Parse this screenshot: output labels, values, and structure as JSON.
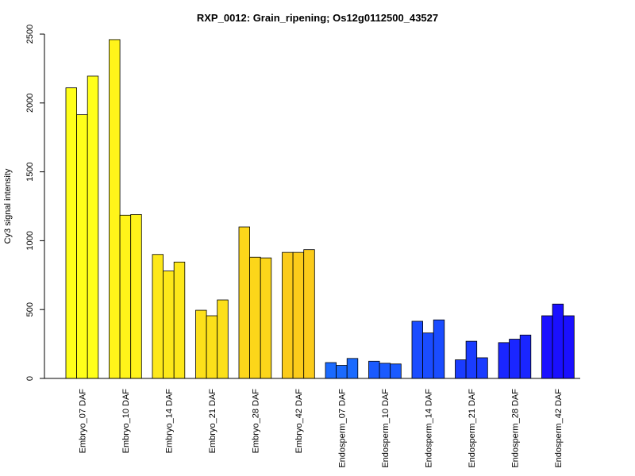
{
  "chart_data": {
    "type": "bar",
    "title": "RXP_0012: Grain_ripening; Os12g0112500_43527",
    "xlabel": "",
    "ylabel": "Cy3 signal intensity",
    "ylim": [
      0,
      2500
    ],
    "yticks": [
      "0",
      "500",
      "1000",
      "1500",
      "2000",
      "2500"
    ],
    "grid": false,
    "legend": "none",
    "groups": [
      {
        "label": "Embryo_07 DAF",
        "color": "#FFFF1A",
        "values": [
          2110,
          1915,
          2195
        ]
      },
      {
        "label": "Embryo_10 DAF",
        "color": "#FFF41A",
        "values": [
          2460,
          1185,
          1190
        ]
      },
      {
        "label": "Embryo_14 DAF",
        "color": "#FDE81A",
        "values": [
          900,
          780,
          845
        ]
      },
      {
        "label": "Embryo_21 DAF",
        "color": "#FCE01A",
        "values": [
          495,
          455,
          570
        ]
      },
      {
        "label": "Embryo_28 DAF",
        "color": "#FCD61A",
        "values": [
          1100,
          880,
          875
        ]
      },
      {
        "label": "Embryo_42 DAF",
        "color": "#FBCB1A",
        "values": [
          915,
          915,
          935
        ]
      },
      {
        "label": "Endosperm_07 DAF",
        "color": "#1A6AFF",
        "values": [
          115,
          95,
          145
        ]
      },
      {
        "label": "Endosperm_10 DAF",
        "color": "#1A5AFF",
        "values": [
          125,
          110,
          105
        ]
      },
      {
        "label": "Endosperm_14 DAF",
        "color": "#1A4CFF",
        "values": [
          415,
          330,
          425
        ]
      },
      {
        "label": "Endosperm_21 DAF",
        "color": "#1A3CFF",
        "values": [
          135,
          270,
          150
        ]
      },
      {
        "label": "Endosperm_28 DAF",
        "color": "#1A26FF",
        "values": [
          260,
          285,
          315
        ]
      },
      {
        "label": "Endosperm_42 DAF",
        "color": "#1A10FF",
        "values": [
          455,
          540,
          455
        ]
      }
    ]
  }
}
